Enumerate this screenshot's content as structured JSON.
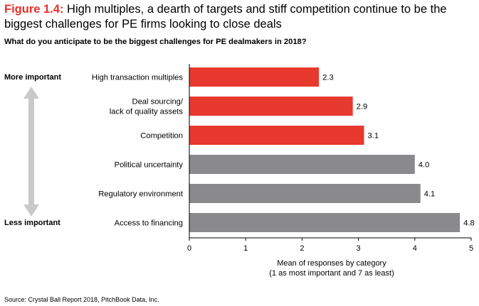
{
  "figure": {
    "label": "Figure 1.4:",
    "title": "High multiples, a dearth of targets and stiff competition continue to be the biggest challenges for PE firms looking to close deals"
  },
  "question": "What do you anticipate to be the biggest challenges for PE dealmakers in 2018?",
  "scale": {
    "top_label": "More important",
    "bottom_label": "Less important"
  },
  "source": "Source: Crystal Ball Report 2018, PitchBook Data, Inc.",
  "colors": {
    "highlight": "#e8392f",
    "neutral": "#8a8a8c",
    "arrow": "#c9c9c9"
  },
  "chart_data": {
    "type": "bar",
    "orientation": "horizontal",
    "categories": [
      [
        "High transaction multiples"
      ],
      [
        "Deal sourcing/",
        "lack of quality assets"
      ],
      [
        "Competition"
      ],
      [
        "Political uncertainty"
      ],
      [
        "Regulatory environment"
      ],
      [
        "Access to financing"
      ]
    ],
    "values": [
      2.3,
      2.9,
      3.1,
      4.0,
      4.1,
      4.8
    ],
    "value_labels": [
      "2.3",
      "2.9",
      "3.1",
      "4.0",
      "4.1",
      "4.8"
    ],
    "highlighted": [
      true,
      true,
      true,
      false,
      false,
      false
    ],
    "xlim": [
      0,
      5
    ],
    "xticks": [
      "0",
      "1",
      "2",
      "3",
      "4",
      "5"
    ],
    "xlabel": [
      "Mean of responses by category",
      "(1 as most important and 7 as least)"
    ],
    "grid": false
  }
}
